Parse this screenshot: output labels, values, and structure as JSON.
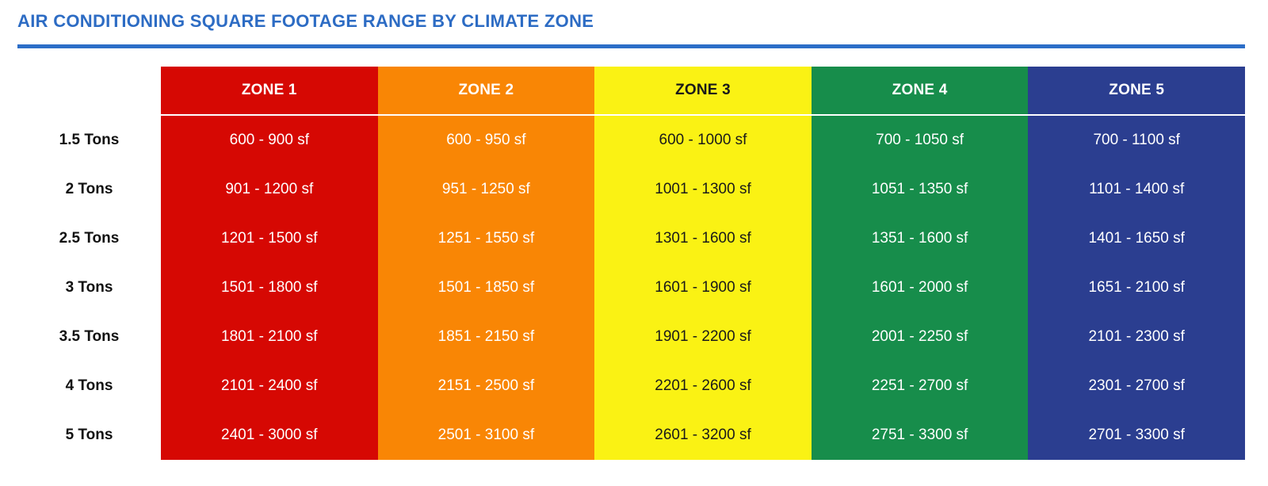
{
  "title": "AIR CONDITIONING SQUARE FOOTAGE RANGE BY CLIMATE ZONE",
  "colors": {
    "title_text": "#2D6CC4",
    "divider": "#2C6EC8",
    "row_label_text": "#111111"
  },
  "zones": [
    {
      "label": "ZONE 1",
      "color": "#D60803",
      "text_color": "#FFFFFF"
    },
    {
      "label": "ZONE 2",
      "color": "#F98605",
      "text_color": "#FFFFFF"
    },
    {
      "label": "ZONE 3",
      "color": "#FAF214",
      "text_color": "#1A1A1A"
    },
    {
      "label": "ZONE 4",
      "color": "#178D4B",
      "text_color": "#FFFFFF"
    },
    {
      "label": "ZONE 5",
      "color": "#2B3E90",
      "text_color": "#FFFFFF"
    }
  ],
  "chart_data": {
    "type": "table",
    "title": "AIR CONDITIONING SQUARE FOOTAGE RANGE BY CLIMATE ZONE",
    "columns": [
      "ZONE 1",
      "ZONE 2",
      "ZONE 3",
      "ZONE 4",
      "ZONE 5"
    ],
    "row_header": "Tons",
    "unit": "sf",
    "rows": [
      {
        "label": "1.5 Tons",
        "values": [
          "600 - 900 sf",
          "600 - 950 sf",
          "600 - 1000 sf",
          "700 - 1050 sf",
          "700 - 1100 sf"
        ]
      },
      {
        "label": "2 Tons",
        "values": [
          "901 - 1200 sf",
          "951 - 1250 sf",
          "1001 - 1300 sf",
          "1051 - 1350 sf",
          "1101 - 1400 sf"
        ]
      },
      {
        "label": "2.5 Tons",
        "values": [
          "1201 - 1500 sf",
          "1251 - 1550 sf",
          "1301 - 1600 sf",
          "1351 - 1600 sf",
          "1401 - 1650 sf"
        ]
      },
      {
        "label": "3 Tons",
        "values": [
          "1501 - 1800 sf",
          "1501 - 1850 sf",
          "1601 - 1900 sf",
          "1601 - 2000 sf",
          "1651 - 2100 sf"
        ]
      },
      {
        "label": "3.5 Tons",
        "values": [
          "1801 - 2100 sf",
          "1851 - 2150 sf",
          "1901 - 2200 sf",
          "2001 - 2250 sf",
          "2101 - 2300 sf"
        ]
      },
      {
        "label": "4 Tons",
        "values": [
          "2101 - 2400 sf",
          "2151 - 2500 sf",
          "2201 - 2600 sf",
          "2251 - 2700 sf",
          "2301 - 2700 sf"
        ]
      },
      {
        "label": "5 Tons",
        "values": [
          "2401 - 3000 sf",
          "2501 - 3100 sf",
          "2601 - 3200 sf",
          "2751 - 3300 sf",
          "2701 - 3300 sf"
        ]
      }
    ]
  }
}
